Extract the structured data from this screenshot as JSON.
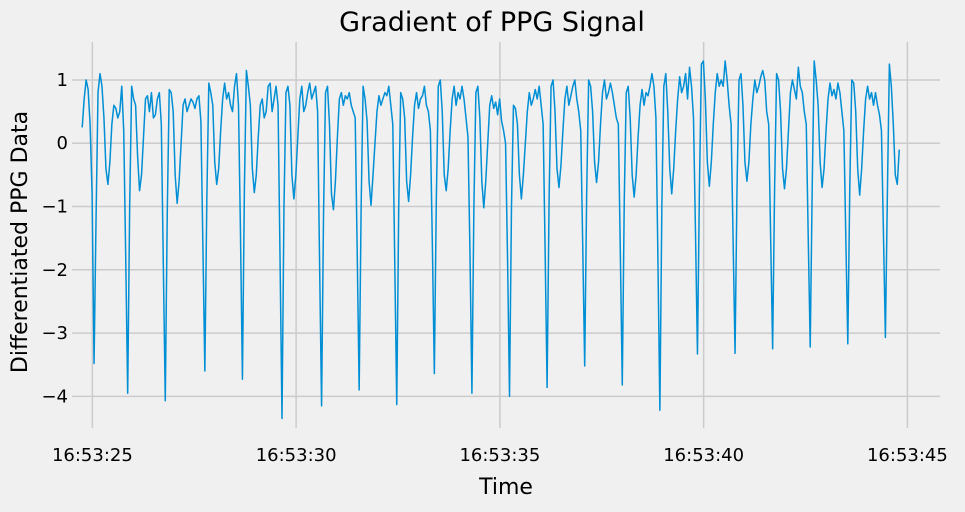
{
  "chart_data": {
    "type": "line",
    "title": "Gradient of PPG Signal",
    "xlabel": "Time",
    "ylabel": "Differentiated PPG Data",
    "x_tick_labels": [
      "16:53:25",
      "16:53:30",
      "16:53:35",
      "16:53:40",
      "16:53:45"
    ],
    "y_ticks": [
      -4,
      -3,
      -2,
      -1,
      0,
      1
    ],
    "xlim": [
      "16:53:24.5",
      "16:53:45.8"
    ],
    "ylim": [
      -4.5,
      1.6
    ],
    "grid": true,
    "series_color": "#008fd5",
    "series": [
      {
        "x_start": "16:53:24.75",
        "x_end": "16:53:44.8",
        "sample_interval_s": 0.05,
        "note_period_s": 0.955,
        "values": [
          0.25,
          0.7,
          1.0,
          0.85,
          0.3,
          -0.8,
          -3.48,
          -1.2,
          0.8,
          1.1,
          0.9,
          0.4,
          -0.4,
          -0.65,
          -0.3,
          0.3,
          0.6,
          0.55,
          0.4,
          0.5,
          0.9,
          0.2,
          -1.8,
          -3.95,
          -1.0,
          0.9,
          0.7,
          0.6,
          -0.2,
          -0.75,
          -0.5,
          0.1,
          0.7,
          0.75,
          0.5,
          0.8,
          0.4,
          0.45,
          0.7,
          0.8,
          0.3,
          -1.9,
          -4.07,
          -1.1,
          0.85,
          0.8,
          0.5,
          -0.5,
          -0.95,
          -0.6,
          0.0,
          0.6,
          0.7,
          0.5,
          0.6,
          0.7,
          0.65,
          0.55,
          0.7,
          0.75,
          0.35,
          -1.6,
          -3.6,
          -0.9,
          0.95,
          0.8,
          0.6,
          -0.3,
          -0.65,
          -0.4,
          0.2,
          0.7,
          0.95,
          0.7,
          0.8,
          0.6,
          0.5,
          0.9,
          1.1,
          0.6,
          -1.4,
          -3.73,
          -0.7,
          1.15,
          0.9,
          0.6,
          -0.4,
          -0.78,
          -0.5,
          0.1,
          0.6,
          0.7,
          0.4,
          0.5,
          0.9,
          0.95,
          0.5,
          0.7,
          0.9,
          0.6,
          -1.8,
          -4.35,
          -1.0,
          0.8,
          0.9,
          0.6,
          -0.5,
          -0.88,
          -0.5,
          0.1,
          0.7,
          0.9,
          0.5,
          0.6,
          0.8,
          0.95,
          0.7,
          0.8,
          0.9,
          0.5,
          -1.9,
          -4.15,
          -1.1,
          0.8,
          0.9,
          0.3,
          -0.8,
          -1.05,
          -0.6,
          0.1,
          0.7,
          0.8,
          0.6,
          0.75,
          0.7,
          0.8,
          0.6,
          0.5,
          0.4,
          -1.7,
          -3.9,
          -1.0,
          0.9,
          0.7,
          0.35,
          -0.6,
          -0.98,
          -0.5,
          0.0,
          0.5,
          0.75,
          0.6,
          0.7,
          0.8,
          0.75,
          0.9,
          0.6,
          0.3,
          -1.9,
          -4.13,
          -1.0,
          0.8,
          0.7,
          0.4,
          -0.6,
          -0.92,
          -0.5,
          0.1,
          0.6,
          0.8,
          0.55,
          0.7,
          0.75,
          0.9,
          0.6,
          0.5,
          0.2,
          -1.6,
          -3.64,
          -0.9,
          0.9,
          1.0,
          0.5,
          -0.5,
          -0.75,
          -0.4,
          0.2,
          0.7,
          0.9,
          0.6,
          0.8,
          0.7,
          0.9,
          0.7,
          0.4,
          0.1,
          -1.7,
          -3.95,
          -1.0,
          0.8,
          0.9,
          0.4,
          -0.6,
          -1.02,
          -0.6,
          0.0,
          0.6,
          0.75,
          0.55,
          0.65,
          0.45,
          0.7,
          0.35,
          0.2,
          0.0,
          -1.8,
          -4.0,
          -1.0,
          0.6,
          0.55,
          0.3,
          -0.5,
          -0.88,
          -0.5,
          0.0,
          0.5,
          0.8,
          0.6,
          0.7,
          0.85,
          0.7,
          0.9,
          0.6,
          0.3,
          -1.7,
          -3.86,
          -0.9,
          0.9,
          1.0,
          0.5,
          -0.4,
          -0.7,
          -0.35,
          0.2,
          0.7,
          0.9,
          0.6,
          0.75,
          0.9,
          1.0,
          0.7,
          0.5,
          0.2,
          -1.6,
          -3.52,
          -0.8,
          1.0,
          0.9,
          0.5,
          -0.3,
          -0.62,
          -0.3,
          0.3,
          0.8,
          1.0,
          0.7,
          0.8,
          0.95,
          0.8,
          0.6,
          0.4,
          0.3,
          -1.7,
          -3.82,
          -0.9,
          0.8,
          0.9,
          0.4,
          -0.5,
          -0.85,
          -0.5,
          0.1,
          0.6,
          0.85,
          0.6,
          0.8,
          0.75,
          0.9,
          1.1,
          0.9,
          0.4,
          -1.8,
          -4.22,
          -1.0,
          0.9,
          1.1,
          0.5,
          -0.4,
          -0.8,
          -0.4,
          0.2,
          0.7,
          1.05,
          0.8,
          0.9,
          1.1,
          0.7,
          1.2,
          0.9,
          0.4,
          -1.4,
          -3.33,
          -0.7,
          1.25,
          1.3,
          0.7,
          -0.3,
          -0.68,
          -0.3,
          0.3,
          0.8,
          1.1,
          0.9,
          1.0,
          0.9,
          1.3,
          1.0,
          0.6,
          0.3,
          -1.5,
          -3.32,
          -0.7,
          1.0,
          1.1,
          0.6,
          -0.3,
          -0.6,
          -0.3,
          0.3,
          0.7,
          1.0,
          0.8,
          0.9,
          1.05,
          1.15,
          1.0,
          0.5,
          0.3,
          -1.5,
          -3.25,
          -0.7,
          1.1,
          1.0,
          0.5,
          -0.4,
          -0.72,
          -0.4,
          0.2,
          0.8,
          1.0,
          0.85,
          0.7,
          1.2,
          0.9,
          0.8,
          0.5,
          0.3,
          -1.5,
          -3.22,
          -0.7,
          1.3,
          1.0,
          0.6,
          -0.3,
          -0.7,
          -0.4,
          0.2,
          0.7,
          0.95,
          0.75,
          0.85,
          0.7,
          0.95,
          0.8,
          0.5,
          0.2,
          -1.5,
          -3.17,
          -0.7,
          1.0,
          0.95,
          0.5,
          -0.4,
          -0.82,
          -0.4,
          0.2,
          0.7,
          0.9,
          0.7,
          0.8,
          0.6,
          0.8,
          0.6,
          0.45,
          0.2,
          -1.4,
          -3.07,
          -0.8,
          1.25,
          0.9,
          0.3,
          -0.5,
          -0.65,
          -0.1
        ]
      }
    ]
  }
}
